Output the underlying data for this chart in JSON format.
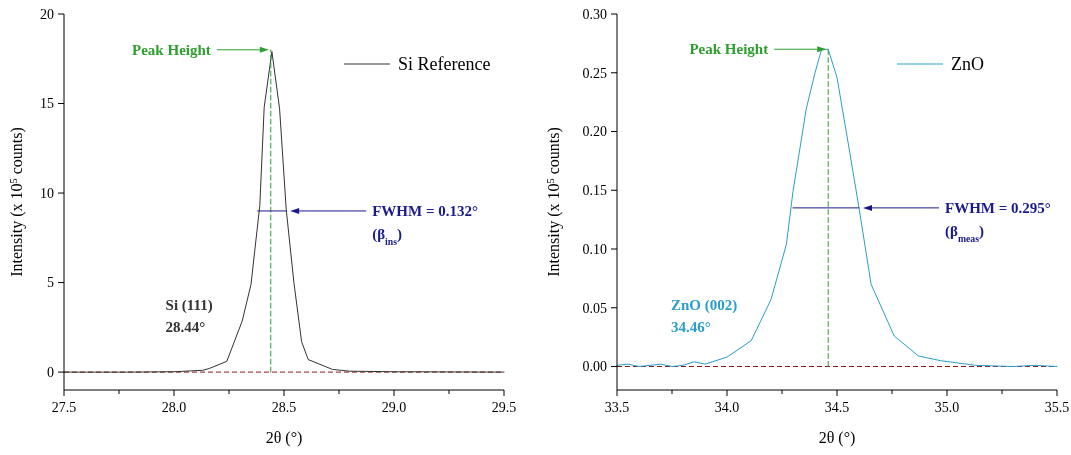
{
  "chart_data": [
    {
      "type": "line",
      "xlabel": "2θ (°)",
      "ylabel": "Intensity (x 10$^{5}$ counts)",
      "legend": "top right",
      "xlim": [
        27.5,
        29.5
      ],
      "ylim": [
        -1,
        20
      ],
      "xticks": [
        27.5,
        {
          "value": 27.75,
          "label": null
        },
        {
          "value": 28,
          "label": "28.0"
        },
        {
          "value": 28.25,
          "label": null
        },
        28.5,
        {
          "value": 28.75,
          "label": null
        },
        {
          "value": 29,
          "label": "29.0"
        },
        {
          "value": 29.25,
          "label": null
        },
        29.5
      ],
      "yticks": [
        0,
        5,
        10,
        15,
        20
      ],
      "series": [
        {
          "name": "Si Reference",
          "color": "#333333",
          "x": [
            27.5,
            27.8,
            28.0,
            28.05,
            28.13,
            28.16,
            28.24,
            28.31,
            28.35,
            28.39,
            28.41,
            28.445,
            28.48,
            28.51,
            28.545,
            28.58,
            28.61,
            28.72,
            28.8,
            29.0,
            29.5
          ],
          "values": [
            0,
            0,
            0.02,
            0.05,
            0.1,
            0.2,
            0.6,
            2.85,
            4.9,
            9.3,
            14.8,
            17.9,
            14.7,
            9.1,
            5.0,
            1.7,
            0.7,
            0.15,
            0.05,
            0.02,
            0
          ]
        },
        {
          "type": "line",
          "color": "#2e9e2e",
          "line_style": "dashed",
          "x": [
            28.44,
            28.44
          ],
          "values": [
            0,
            18
          ]
        },
        {
          "type": "line",
          "color": "#1a1a8c",
          "x": [
            28.38,
            28.51
          ],
          "values": [
            9,
            9
          ]
        }
      ],
      "ref_lines": [
        {
          "axis": "y",
          "value": 0,
          "color": "#8b1a1a",
          "line_style": "dashed"
        }
      ],
      "annotations": [
        "Peak Height",
        "FWHM = 0.132°",
        "(β$_{ins}$)",
        "Si (111)",
        "28.44°"
      ]
    },
    {
      "type": "line",
      "xlabel": "2θ (°)",
      "ylabel": "Intensity (x 10$^{5}$ counts)",
      "legend": "top right",
      "xlim": [
        33.5,
        35.5
      ],
      "ylim": [
        -0.02,
        0.3
      ],
      "xticks": [
        33.5,
        {
          "value": 33.75,
          "label": null
        },
        {
          "value": 34,
          "label": "34.0"
        },
        {
          "value": 34.25,
          "label": null
        },
        34.5,
        {
          "value": 34.75,
          "label": null
        },
        {
          "value": 35,
          "label": "35.0"
        },
        {
          "value": 35.25,
          "label": null
        },
        35.5
      ],
      "yticks": [
        {
          "value": 0,
          "label": "0.00"
        },
        0.05,
        {
          "value": 0.1,
          "label": "0.10"
        },
        0.15,
        {
          "value": 0.2,
          "label": "0.20"
        },
        0.25,
        {
          "value": 0.3,
          "label": "0.30"
        }
      ],
      "series": [
        {
          "name": "ZnO",
          "color": "#2a9ec8",
          "x": [
            33.5,
            33.55,
            33.6,
            33.65,
            33.7,
            33.75,
            33.8,
            33.85,
            33.9,
            34.0,
            34.11,
            34.2,
            34.27,
            34.3,
            34.36,
            34.4,
            34.43,
            34.46,
            34.5,
            34.56,
            34.6,
            34.655,
            34.76,
            34.87,
            34.97,
            35.13,
            35.3,
            35.4,
            35.5
          ],
          "values": [
            0.001,
            0.002,
            0.0,
            0.001,
            0.002,
            0.0,
            0.001,
            0.004,
            0.002,
            0.008,
            0.022,
            0.057,
            0.104,
            0.149,
            0.219,
            0.25,
            0.27,
            0.27,
            0.246,
            0.18,
            0.135,
            0.07,
            0.026,
            0.009,
            0.005,
            0.001,
            0.0,
            0.001,
            0.0
          ]
        },
        {
          "type": "line",
          "color": "#2e9e2e",
          "line_style": "dashed",
          "x": [
            34.46,
            34.46
          ],
          "values": [
            0,
            0.27
          ]
        },
        {
          "type": "line",
          "color": "#1a1a8c",
          "x": [
            34.3,
            34.6
          ],
          "values": [
            0.135,
            0.135
          ]
        }
      ],
      "ref_lines": [
        {
          "axis": "y",
          "value": 0,
          "color": "#8b1a1a",
          "line_style": "dashed"
        }
      ],
      "annotations": [
        "Peak Height",
        "FWHM = 0.295°",
        "(β$_{meas}$)",
        "ZnO (002)",
        "34.46°"
      ]
    }
  ]
}
